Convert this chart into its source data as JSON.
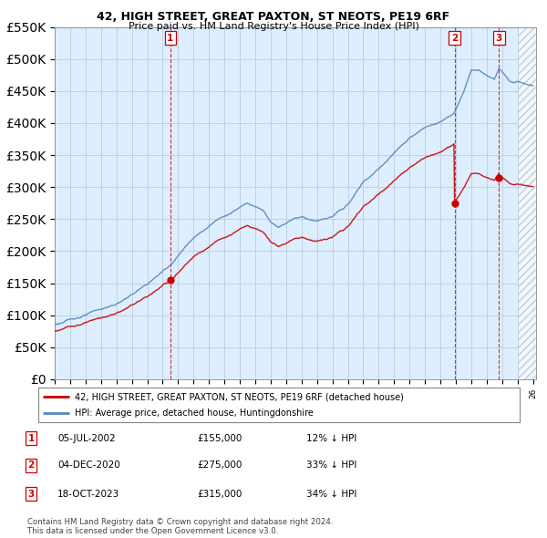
{
  "title": "42, HIGH STREET, GREAT PAXTON, ST NEOTS, PE19 6RF",
  "subtitle": "Price paid vs. HM Land Registry's House Price Index (HPI)",
  "legend_label_red": "42, HIGH STREET, GREAT PAXTON, ST NEOTS, PE19 6RF (detached house)",
  "legend_label_blue": "HPI: Average price, detached house, Huntingdonshire",
  "table_rows": [
    {
      "num": "1",
      "date": "05-JUL-2002",
      "price": "£155,000",
      "pct": "12% ↓ HPI"
    },
    {
      "num": "2",
      "date": "04-DEC-2020",
      "price": "£275,000",
      "pct": "33% ↓ HPI"
    },
    {
      "num": "3",
      "date": "18-OCT-2023",
      "price": "£315,000",
      "pct": "34% ↓ HPI"
    }
  ],
  "footer": "Contains HM Land Registry data © Crown copyright and database right 2024.\nThis data is licensed under the Open Government Licence v3.0.",
  "sale_years": [
    2002.5,
    2020.917,
    2023.8
  ],
  "sale_prices": [
    155000,
    275000,
    315000
  ],
  "sale_markers": [
    1,
    2,
    3
  ],
  "ylim": [
    0,
    550000
  ],
  "yticks": [
    0,
    50000,
    100000,
    150000,
    200000,
    250000,
    300000,
    350000,
    400000,
    450000,
    500000,
    550000
  ],
  "background_color": "#ffffff",
  "chart_bg_color": "#ddeeff",
  "grid_color": "#bbccdd",
  "red_color": "#cc0000",
  "blue_color": "#5588bb",
  "vline_color": "#cc0000",
  "hatch_color": "#aabbcc"
}
